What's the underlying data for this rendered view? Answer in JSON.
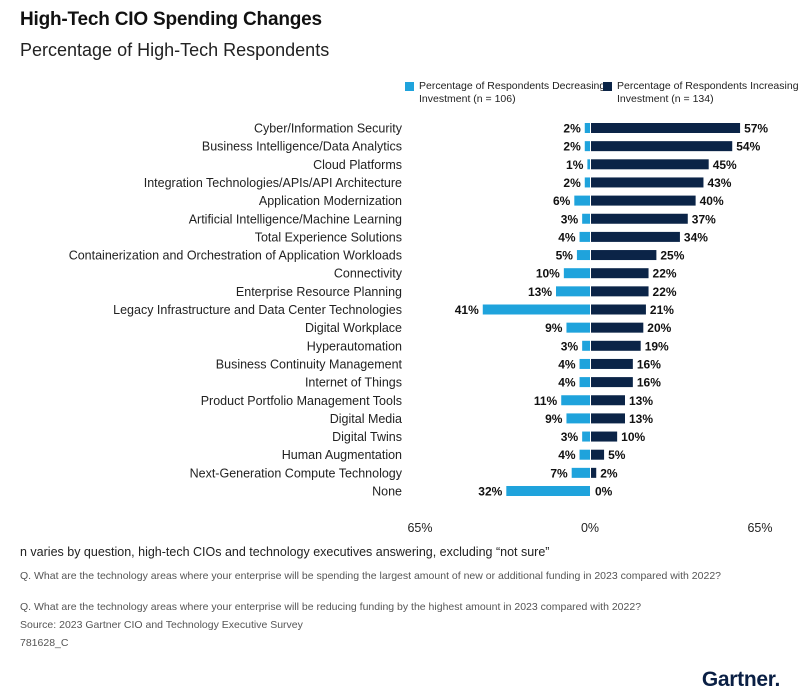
{
  "header": {
    "title": "High-Tech CIO Spending Changes",
    "subtitle": "Percentage of High-Tech Respondents"
  },
  "legend": {
    "decreasing": "Percentage of Respondents Decreasing Investment (n = 106)",
    "increasing": "Percentage of Respondents Increasing Investment (n = 134)"
  },
  "colors": {
    "decreasing": "#1fa3dc",
    "increasing": "#0b2447"
  },
  "chart_data": {
    "type": "bar",
    "title": "High-Tech CIO Spending Changes",
    "subtitle": "Percentage of High-Tech Respondents",
    "categories": [
      "Cyber/Information Security",
      "Business Intelligence/Data Analytics",
      "Cloud Platforms",
      "Integration Technologies/APIs/API Architecture",
      "Application Modernization",
      "Artificial Intelligence/Machine Learning",
      "Total Experience Solutions",
      "Containerization and Orchestration of Application Workloads",
      "Connectivity",
      "Enterprise Resource Planning",
      "Legacy Infrastructure and Data Center Technologies",
      "Digital Workplace",
      "Hyperautomation",
      "Business Continuity Management",
      "Internet of Things",
      "Product Portfolio Management Tools",
      "Digital Media",
      "Digital Twins",
      "Human Augmentation",
      "Next-Generation Compute Technology",
      "None"
    ],
    "series": [
      {
        "name": "Percentage of Respondents Decreasing Investment (n = 106)",
        "values": [
          2,
          2,
          1,
          2,
          6,
          3,
          4,
          5,
          10,
          13,
          41,
          9,
          3,
          4,
          4,
          11,
          9,
          3,
          4,
          7,
          32
        ],
        "labels": [
          "2%",
          "2%",
          "1%",
          "2%",
          "6%",
          "3%",
          "4%",
          "5%",
          "10%",
          "13%",
          "41%",
          "9%",
          "3%",
          "4%",
          "4%",
          "11%",
          "9%",
          "3%",
          "4%",
          "7%",
          "32%"
        ]
      },
      {
        "name": "Percentage of Respondents Increasing Investment (n = 134)",
        "values": [
          57,
          54,
          45,
          43,
          40,
          37,
          34,
          25,
          22,
          22,
          21,
          20,
          19,
          16,
          16,
          13,
          13,
          10,
          5,
          2,
          0
        ],
        "labels": [
          "57%",
          "54%",
          "45%",
          "43%",
          "40%",
          "37%",
          "34%",
          "25%",
          "22%",
          "22%",
          "21%",
          "20%",
          "19%",
          "16%",
          "16%",
          "13%",
          "13%",
          "10%",
          "5%",
          "2%",
          "0%"
        ]
      }
    ],
    "xlim": [
      -65,
      65
    ],
    "x_ticks": [
      "65%",
      "0%",
      "65%"
    ],
    "grid": false
  },
  "footer": {
    "note": "n varies by question, high-tech CIOs and technology executives answering, excluding “not sure”",
    "q1": "Q. What are the technology areas where your enterprise will be spending the largest amount of new or additional funding in 2023 compared with 2022?",
    "q2": "Q. What are the technology areas where your enterprise will be reducing funding by the highest amount in 2023 compared with 2022?",
    "source": "Source: 2023 Gartner CIO and Technology Executive Survey",
    "id": "781628_C",
    "logo": "Gartner."
  }
}
